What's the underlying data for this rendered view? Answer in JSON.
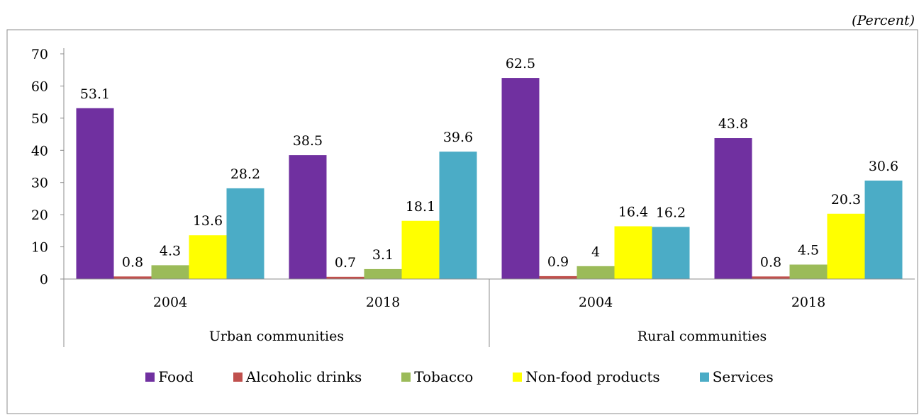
{
  "unit_label": "(Percent)",
  "chart_data": {
    "type": "bar",
    "ylim": [
      0,
      70
    ],
    "yticks": [
      0,
      10,
      20,
      30,
      40,
      50,
      60,
      70
    ],
    "groups": [
      {
        "label": "Urban communities",
        "categories": [
          "2004",
          "2018"
        ]
      },
      {
        "label": "Rural communities",
        "categories": [
          "2004",
          "2018"
        ]
      }
    ],
    "categories": [
      "2004",
      "2018",
      "2004",
      "2018"
    ],
    "series": [
      {
        "name": "Food",
        "color": "#7030A0",
        "values": [
          53.1,
          38.5,
          62.5,
          43.8
        ]
      },
      {
        "name": "Alcoholic drinks",
        "color": "#C0504D",
        "values": [
          0.8,
          0.7,
          0.9,
          0.8
        ]
      },
      {
        "name": "Tobacco",
        "color": "#9BBB59",
        "values": [
          4.3,
          3.1,
          4,
          4.5
        ]
      },
      {
        "name": "Non-food products",
        "color": "#FFFF00",
        "values": [
          13.6,
          18.1,
          16.4,
          20.3
        ]
      },
      {
        "name": "Services",
        "color": "#4BACC6",
        "values": [
          28.2,
          39.6,
          16.2,
          30.6
        ]
      }
    ],
    "legend_position": "bottom",
    "grid": false
  }
}
